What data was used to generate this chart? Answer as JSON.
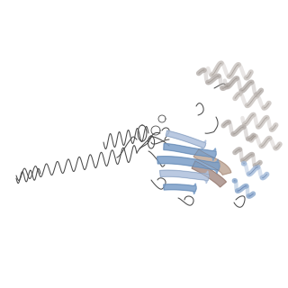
{
  "background_color": "#ffffff",
  "fig_width": 3.2,
  "fig_height": 3.2,
  "dpi": 100,
  "line_color": "#4a4a4a",
  "helix_gray": "#b5aeaa",
  "helix_gray2": "#c8c2be",
  "helix_gray_dark": "#908880",
  "helix_blue": "#8aa8cc",
  "helix_blue2": "#a0b8d8",
  "helix_brown": "#a89088",
  "helix_brown2": "#c0a898",
  "ribbon_blue": "#7a9ec8",
  "ribbon_blue_light": "#aec0dc",
  "lw_main": 0.75
}
